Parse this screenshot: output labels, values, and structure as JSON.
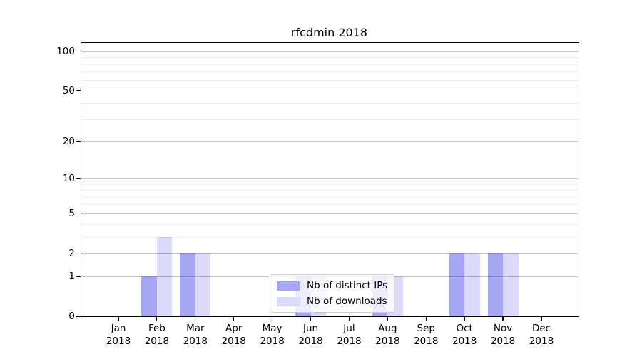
{
  "title": "rfcdmin 2018",
  "colors": {
    "distinct_ips": "#a6a6f4",
    "downloads": "#dbdbf9",
    "grid_major": "rgba(0,0,0,0.22)",
    "grid_minor": "rgba(0,0,0,0.07)",
    "axis": "#000000",
    "legend_border": "#cccccc"
  },
  "legend": {
    "position": "lower center",
    "items": [
      {
        "label": "Nb of distinct IPs",
        "color_key": "distinct_ips"
      },
      {
        "label": "Nb of downloads",
        "color_key": "downloads"
      }
    ]
  },
  "chart_data": {
    "type": "bar",
    "title": "rfcdmin 2018",
    "x_categories": [
      "Jan",
      "Feb",
      "Mar",
      "Apr",
      "May",
      "Jun",
      "Jul",
      "Aug",
      "Sep",
      "Oct",
      "Nov",
      "Dec"
    ],
    "x_year_label": "2018",
    "series": [
      {
        "name": "Nb of distinct IPs",
        "color_key": "distinct_ips",
        "values": [
          0,
          1,
          2,
          0,
          0,
          1,
          0,
          1,
          0,
          2,
          2,
          0
        ]
      },
      {
        "name": "Nb of downloads",
        "color_key": "downloads",
        "values": [
          0,
          3,
          2,
          0,
          0,
          1,
          0,
          1,
          0,
          2,
          2,
          0
        ]
      }
    ],
    "yscale": "log1p",
    "ylim": [
      0,
      116
    ],
    "yticks": [
      0,
      1,
      2,
      5,
      10,
      20,
      50,
      100
    ],
    "yticks_minor": [
      3,
      4,
      6,
      7,
      8,
      9,
      30,
      40,
      60,
      70,
      80,
      90
    ],
    "grid": "horizontal",
    "legend_position": "lower center"
  }
}
